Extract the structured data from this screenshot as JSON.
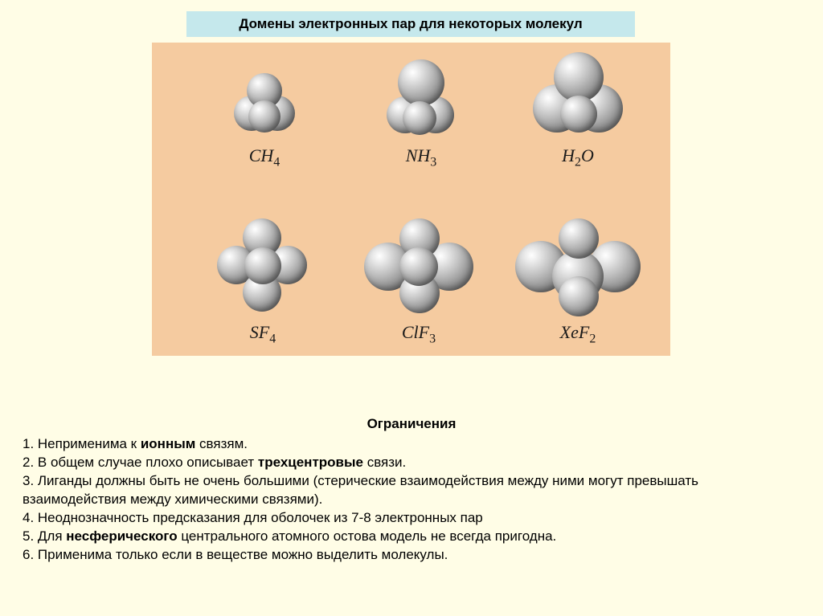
{
  "title": "Домены электронных пар для некоторых молекул",
  "colors": {
    "page_bg": "#fffde6",
    "title_bg": "#c5e8ec",
    "panel_bg": "#f5cba0",
    "sphere_highlight": "#ffffff",
    "sphere_mid": "#bfbfbf",
    "sphere_shadow": "#555555",
    "text": "#000000"
  },
  "typography": {
    "title_fontsize": 17,
    "label_fontsize": 22,
    "label_font": "Times New Roman italic",
    "body_fontsize": 17
  },
  "molecules": [
    {
      "formula_html": "CH<sub>4</sub>",
      "row": 1,
      "col": 1,
      "spheres": 4,
      "geometry": "tetrahedral-4"
    },
    {
      "formula_html": "NH<sub>3</sub>",
      "row": 1,
      "col": 2,
      "spheres": 4,
      "geometry": "tetrahedral-1lp"
    },
    {
      "formula_html": "H<sub>2</sub>O",
      "row": 1,
      "col": 3,
      "spheres": 4,
      "geometry": "tetrahedral-2lp"
    },
    {
      "formula_html": "SF<sub>4</sub>",
      "row": 2,
      "col": 1,
      "spheres": 5,
      "geometry": "tbp-5"
    },
    {
      "formula_html": "ClF<sub>3</sub>",
      "row": 2,
      "col": 2,
      "spheres": 5,
      "geometry": "tbp-2lp"
    },
    {
      "formula_html": "XeF<sub>2</sub>",
      "row": 2,
      "col": 3,
      "spheres": 5,
      "geometry": "tbp-3lp"
    }
  ],
  "limitations": {
    "heading": "Ограничения",
    "items": [
      {
        "prefix": "1. Неприменима к ",
        "bold": "ионным",
        "suffix": " связям."
      },
      {
        "prefix": "2. В общем случае плохо описывает  ",
        "bold": "трехцентровые",
        "suffix": " связи."
      },
      {
        "prefix": "3. Лиганды должны быть не очень большими (стерические взаимодействия между ними могут превышать взаимодействия между химическими связями).",
        "bold": "",
        "suffix": ""
      },
      {
        "prefix": "4. Неоднозначность предсказания для оболочек из 7-8 электронных пар",
        "bold": "",
        "suffix": ""
      },
      {
        "prefix": "5. Для ",
        "bold": "несферического",
        "suffix": " центрального атомного остова модель не всегда пригодна."
      },
      {
        "prefix": "6. Применима только если в веществе можно выделить молекулы.",
        "bold": "",
        "suffix": ""
      }
    ]
  }
}
